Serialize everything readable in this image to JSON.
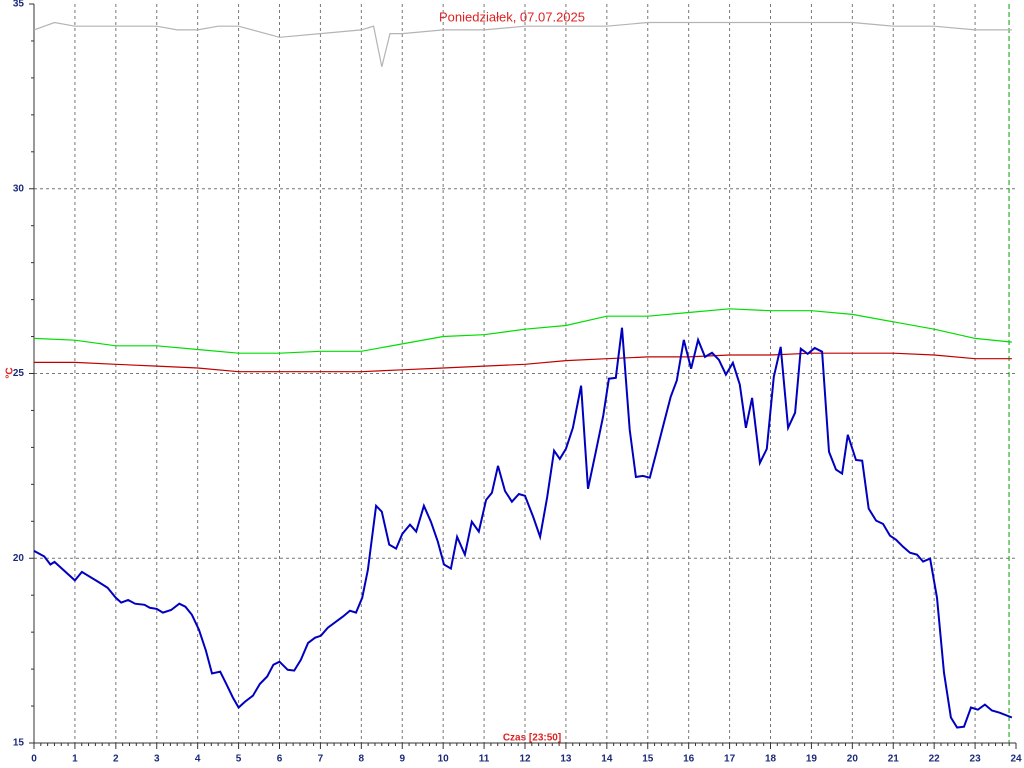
{
  "chart_data": {
    "type": "line",
    "title": "Poniedziałek, 07.07.2025",
    "x_label": "Czas [23:50]",
    "y_label": "°C",
    "xlim": [
      0,
      24
    ],
    "ylim": [
      15,
      35
    ],
    "xticks": [
      0,
      1,
      2,
      3,
      4,
      5,
      6,
      7,
      8,
      9,
      10,
      11,
      12,
      13,
      14,
      15,
      16,
      17,
      18,
      19,
      20,
      21,
      22,
      23,
      24
    ],
    "yticks": [
      15,
      20,
      25,
      30,
      35
    ],
    "yminorticks": [
      16,
      17,
      18,
      19,
      21,
      22,
      23,
      24,
      26,
      27,
      28,
      29,
      31,
      32,
      33,
      34
    ],
    "xminorticks_per_hour": 6,
    "grid": true,
    "current_time": 23.83,
    "series": [
      {
        "color": "#b4b4b4",
        "x": [
          0,
          0.5,
          1,
          2,
          3,
          3.5,
          4,
          4.5,
          5,
          6,
          7,
          8,
          8.3,
          8.5,
          8.7,
          9,
          10,
          11,
          12,
          13,
          14,
          15,
          16,
          17,
          18,
          19,
          20,
          21,
          22,
          23,
          23.9
        ],
        "values": [
          34.3,
          34.5,
          34.4,
          34.4,
          34.4,
          34.3,
          34.3,
          34.4,
          34.4,
          34.1,
          34.2,
          34.3,
          34.4,
          33.3,
          34.2,
          34.2,
          34.3,
          34.3,
          34.4,
          34.4,
          34.4,
          34.5,
          34.5,
          34.5,
          34.5,
          34.5,
          34.5,
          34.4,
          34.4,
          34.3,
          34.3
        ]
      },
      {
        "color": "#00dd00",
        "x": [
          0,
          1,
          2,
          3,
          4,
          5,
          6,
          7,
          8,
          9,
          10,
          11,
          12,
          13,
          14,
          15,
          16,
          17,
          18,
          19,
          20,
          21,
          22,
          23,
          23.9
        ],
        "values": [
          25.95,
          25.9,
          25.75,
          25.75,
          25.65,
          25.55,
          25.55,
          25.6,
          25.6,
          25.8,
          26.0,
          26.05,
          26.2,
          26.3,
          26.55,
          26.55,
          26.65,
          26.75,
          26.7,
          26.7,
          26.6,
          26.4,
          26.2,
          25.95,
          25.85
        ]
      },
      {
        "color": "#c00000",
        "x": [
          0,
          1,
          2,
          3,
          4,
          5,
          6,
          7,
          8,
          9,
          10,
          11,
          12,
          13,
          14,
          15,
          16,
          17,
          18,
          19,
          20,
          21,
          22,
          23,
          23.9
        ],
        "values": [
          25.3,
          25.3,
          25.25,
          25.2,
          25.15,
          25.05,
          25.05,
          25.05,
          25.05,
          25.1,
          25.15,
          25.2,
          25.25,
          25.35,
          25.4,
          25.45,
          25.45,
          25.5,
          25.5,
          25.55,
          25.55,
          25.55,
          25.5,
          25.4,
          25.4
        ]
      },
      {
        "color": "#0000c0",
        "x": [
          0,
          0.25,
          0.4,
          0.5,
          1.0,
          1.17,
          1.6,
          1.8,
          2.0,
          2.13,
          2.3,
          2.47,
          2.7,
          2.83,
          3.0,
          3.15,
          3.35,
          3.55,
          3.7,
          3.86,
          4.03,
          4.2,
          4.35,
          4.55,
          4.7,
          4.86,
          5.0,
          5.16,
          5.35,
          5.52,
          5.7,
          5.85,
          6.0,
          6.2,
          6.36,
          6.52,
          6.7,
          6.87,
          7.01,
          7.18,
          7.55,
          7.72,
          7.87,
          8.02,
          8.16,
          8.36,
          8.5,
          8.68,
          8.85,
          9.0,
          9.19,
          9.34,
          9.53,
          9.7,
          9.87,
          10.02,
          10.19,
          10.34,
          10.53,
          10.7,
          10.87,
          11.05,
          11.19,
          11.34,
          11.51,
          11.68,
          11.85,
          12.0,
          12.2,
          12.37,
          12.54,
          12.71,
          12.85,
          13.0,
          13.17,
          13.37,
          13.54,
          13.73,
          13.91,
          14.05,
          14.22,
          14.37,
          14.56,
          14.71,
          14.88,
          15.05,
          15.22,
          15.39,
          15.56,
          15.71,
          15.88,
          16.06,
          16.23,
          16.4,
          16.57,
          16.74,
          16.91,
          17.08,
          17.25,
          17.4,
          17.55,
          17.74,
          17.91,
          18.08,
          18.25,
          18.43,
          18.6,
          18.74,
          18.91,
          19.08,
          19.26,
          19.43,
          19.6,
          19.75,
          19.89,
          20.09,
          20.24,
          20.4,
          20.58,
          20.75,
          20.92,
          21.07,
          21.24,
          21.41,
          21.58,
          21.73,
          21.9,
          22.07,
          22.24,
          22.41,
          22.56,
          22.73,
          22.9,
          23.07,
          23.24,
          23.41,
          23.6,
          23.9
        ],
        "values": [
          20.2,
          20.05,
          19.83,
          19.9,
          19.4,
          19.63,
          19.34,
          19.2,
          18.93,
          18.8,
          18.87,
          18.77,
          18.74,
          18.66,
          18.63,
          18.53,
          18.6,
          18.77,
          18.69,
          18.47,
          18.07,
          17.5,
          16.88,
          16.93,
          16.6,
          16.23,
          15.96,
          16.12,
          16.28,
          16.6,
          16.8,
          17.12,
          17.2,
          16.98,
          16.96,
          17.25,
          17.71,
          17.85,
          17.9,
          18.12,
          18.42,
          18.58,
          18.53,
          18.93,
          19.69,
          21.42,
          21.26,
          20.37,
          20.26,
          20.66,
          20.91,
          20.72,
          21.42,
          20.99,
          20.45,
          19.83,
          19.72,
          20.58,
          20.1,
          20.99,
          20.72,
          21.58,
          21.77,
          22.5,
          21.82,
          21.53,
          21.74,
          21.69,
          21.12,
          20.58,
          21.64,
          22.91,
          22.69,
          22.96,
          23.53,
          24.67,
          21.88,
          22.88,
          23.85,
          24.86,
          24.88,
          26.24,
          23.48,
          22.2,
          22.23,
          22.18,
          22.91,
          23.64,
          24.37,
          24.81,
          25.91,
          25.13,
          25.91,
          25.45,
          25.56,
          25.37,
          24.97,
          25.29,
          24.7,
          23.53,
          24.34,
          22.58,
          22.96,
          24.91,
          25.72,
          23.53,
          23.94,
          25.67,
          25.53,
          25.69,
          25.59,
          22.88,
          22.4,
          22.29,
          23.34,
          22.66,
          22.64,
          21.34,
          21.02,
          20.93,
          20.61,
          20.5,
          20.31,
          20.15,
          20.1,
          19.91,
          19.99,
          18.93,
          16.9,
          15.69,
          15.42,
          15.44,
          15.96,
          15.9,
          16.04,
          15.88,
          15.82,
          15.69
        ]
      }
    ]
  }
}
